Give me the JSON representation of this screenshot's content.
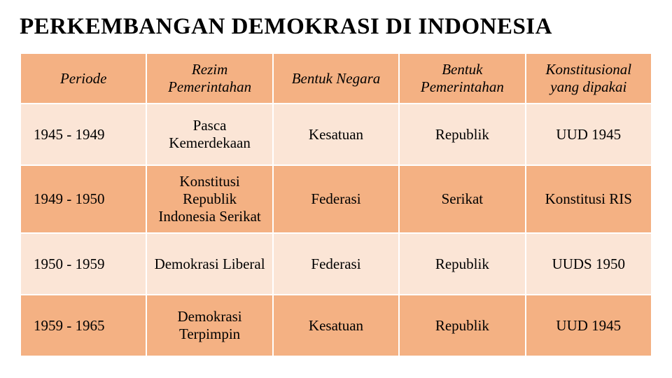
{
  "title": "PERKEMBANGAN DEMOKRASI DI INDONESIA",
  "table": {
    "columns": [
      "Periode",
      "Rezim Pemerintahan",
      "Bentuk Negara",
      "Bentuk Pemerintahan",
      "Konstitusional yang dipakai"
    ],
    "rows": [
      [
        "1945 - 1949",
        "Pasca Kemerdekaan",
        "Kesatuan",
        "Republik",
        "UUD 1945"
      ],
      [
        "1949 - 1950",
        "Konstitusi Republik Indonesia Serikat",
        "Federasi",
        "Serikat",
        "Konstitusi RIS"
      ],
      [
        "1950 - 1959",
        "Demokrasi Liberal",
        "Federasi",
        "Republik",
        "UUDS 1950"
      ],
      [
        "1959 - 1965",
        "Demokrasi Terpimpin",
        "Kesatuan",
        "Republik",
        "UUD 1945"
      ]
    ],
    "header_bg": "#f4b183",
    "row_light_bg": "#fbe5d6",
    "row_dark_bg": "#f4b183",
    "border_color": "#ffffff",
    "title_fontsize": 33,
    "cell_fontsize": 21
  }
}
